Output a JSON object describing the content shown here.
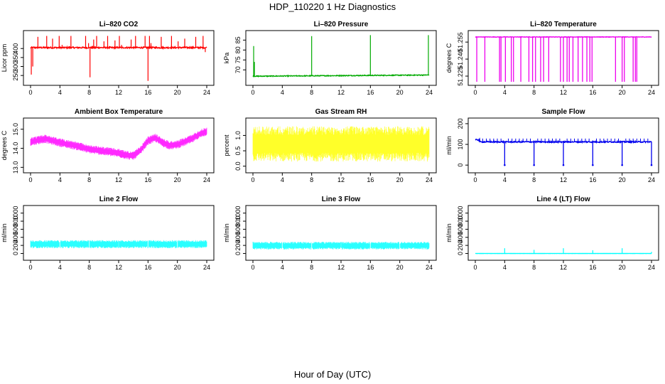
{
  "figure": {
    "title": "HDP_110220  1 Hz Diagnostics",
    "xlabel": "Hour of Day (UTC)"
  },
  "chart_data": [
    {
      "type": "line",
      "title": "Li–820 CO2",
      "ylabel": "Licor ppm",
      "color": "#ff0000",
      "xlim": [
        0,
        24
      ],
      "ylim": [
        215,
        480
      ],
      "xticks": [
        0,
        4,
        8,
        12,
        16,
        20,
        24
      ],
      "yticks": [
        250,
        300,
        350,
        400
      ],
      "baseline": {
        "center": 405,
        "noise": 4
      },
      "spikes": [
        [
          0.1,
          255
        ],
        [
          0.3,
          300
        ],
        [
          1.0,
          465
        ],
        [
          2.2,
          470
        ],
        [
          3.0,
          455
        ],
        [
          3.9,
          470
        ],
        [
          4.3,
          420
        ],
        [
          5.5,
          470
        ],
        [
          7.5,
          470
        ],
        [
          7.9,
          430
        ],
        [
          8.1,
          240
        ],
        [
          8.6,
          450
        ],
        [
          9.0,
          470
        ],
        [
          10.0,
          440
        ],
        [
          10.5,
          470
        ],
        [
          11.5,
          445
        ],
        [
          12.1,
          470
        ],
        [
          12.4,
          420
        ],
        [
          13.7,
          450
        ],
        [
          14.3,
          470
        ],
        [
          15.6,
          470
        ],
        [
          16.0,
          220
        ],
        [
          16.2,
          470
        ],
        [
          16.4,
          430
        ],
        [
          17.8,
          465
        ],
        [
          19.2,
          470
        ],
        [
          20.1,
          440
        ],
        [
          21.0,
          455
        ],
        [
          22.5,
          465
        ],
        [
          23.5,
          470
        ],
        [
          23.8,
          380
        ]
      ]
    },
    {
      "type": "line",
      "title": "Li–820 Pressure",
      "ylabel": "kPa",
      "color": "#00aa00",
      "xlim": [
        0,
        24
      ],
      "ylim": [
        64,
        88
      ],
      "xticks": [
        0,
        4,
        8,
        12,
        16,
        20,
        24
      ],
      "yticks": [
        70,
        75,
        80,
        85
      ],
      "baseline": {
        "start": 66.8,
        "end": 67.4,
        "noise": 0.2
      },
      "spikes": [
        [
          0.1,
          82
        ],
        [
          0.2,
          74
        ],
        [
          8.0,
          87
        ],
        [
          16.0,
          87.5
        ],
        [
          23.9,
          87.5
        ]
      ]
    },
    {
      "type": "line",
      "title": "Li–820 Temperature",
      "ylabel": "degrees C",
      "color": "#ee00ee",
      "xlim": [
        0,
        24
      ],
      "ylim": [
        51.22,
        51.262
      ],
      "xticks": [
        0,
        4,
        8,
        12,
        16,
        20,
        24
      ],
      "yticks": [
        51.225,
        51.24,
        51.255
      ],
      "yticklabels": [
        "51.225",
        "51.240",
        "51.255"
      ],
      "baseline": {
        "center": 51.2595,
        "noise": 0.0002
      },
      "drops": [
        0.2,
        1.3,
        3.3,
        3.5,
        4.1,
        4.9,
        5.2,
        6.2,
        7.3,
        7.8,
        8.2,
        8.9,
        9.3,
        10.0,
        11.6,
        12.0,
        12.5,
        12.8,
        13.3,
        14.0,
        14.6,
        15.2,
        15.6,
        15.9,
        19.1,
        20.0,
        20.3,
        21.5,
        21.8,
        22.0
      ]
    },
    {
      "type": "line",
      "title": "Ambient Box Temperature",
      "ylabel": "degrees C",
      "color": "#ff00ff",
      "xlim": [
        0,
        24
      ],
      "ylim": [
        12.9,
        15.4
      ],
      "xticks": [
        0,
        4,
        8,
        12,
        16,
        20,
        24
      ],
      "yticks": [
        13.0,
        14.0,
        15.0
      ],
      "yticklabels": [
        "13.0",
        "14.0",
        "15.0"
      ],
      "trend": {
        "hour": [
          0,
          2,
          4,
          6,
          8,
          10,
          12,
          13,
          14,
          15,
          16,
          17,
          18,
          19,
          20,
          22,
          23,
          24
        ],
        "center": [
          14.35,
          14.5,
          14.3,
          14.15,
          13.95,
          13.85,
          13.75,
          13.65,
          13.6,
          13.9,
          14.4,
          14.55,
          14.3,
          14.15,
          14.2,
          14.5,
          14.75,
          14.9
        ]
      },
      "band": 0.45
    },
    {
      "type": "line",
      "title": "Gas Stream RH",
      "ylabel": "percent",
      "color": "#ffff00",
      "xlim": [
        0,
        24
      ],
      "ylim": [
        -0.1,
        1.45
      ],
      "xticks": [
        0,
        4,
        8,
        12,
        16,
        20,
        24
      ],
      "yticks": [
        0.0,
        0.5,
        1.0
      ],
      "yticklabels": [
        "0.0",
        "0.5",
        "1.0"
      ],
      "band": {
        "low": 0.15,
        "high": 1.3
      }
    },
    {
      "type": "line",
      "title": "Sample Flow",
      "ylabel": "ml/min",
      "color": "#0000ee",
      "xlim": [
        0,
        24
      ],
      "ylim": [
        -20,
        210
      ],
      "xticks": [
        0,
        4,
        8,
        12,
        16,
        20,
        24
      ],
      "yticks": [
        0,
        100,
        200
      ],
      "baseline": {
        "center": 112,
        "noise": 3,
        "early": 122
      },
      "drops": [
        4.0,
        8.0,
        12.0,
        16.0,
        20.0,
        24.0
      ],
      "bumps": [
        0.5,
        1.0,
        1.5,
        2.0,
        2.5,
        3.0,
        3.5,
        4.5,
        5.0,
        5.5,
        6.0,
        6.5,
        7.0,
        7.5,
        8.5,
        9.0,
        9.5,
        10.0,
        10.5,
        11.0,
        11.5,
        12.5,
        13.0,
        13.5,
        14.0,
        14.5,
        15.0,
        15.5,
        16.5,
        17.0,
        17.5,
        18.0,
        18.5,
        19.0,
        19.5,
        20.5,
        21.0,
        21.5,
        22.0,
        22.5,
        23.0,
        23.5
      ]
    },
    {
      "type": "line",
      "title": "Line 2 Flow",
      "ylabel": "ml/min",
      "color": "#00ffff",
      "xlim": [
        0,
        24
      ],
      "ylim": [
        -80,
        1100
      ],
      "xticks": [
        0,
        4,
        8,
        12,
        16,
        20,
        24
      ],
      "yticks": [
        0,
        200,
        400,
        600,
        800,
        1000
      ],
      "band": {
        "low": 130,
        "high": 330
      },
      "gaps": [
        4.0,
        8.0,
        12.0,
        16.0,
        20.0
      ]
    },
    {
      "type": "line",
      "title": "Line 3 Flow",
      "ylabel": "ml/min",
      "color": "#00ffff",
      "xlim": [
        0,
        24
      ],
      "ylim": [
        -80,
        1100
      ],
      "xticks": [
        0,
        4,
        8,
        12,
        16,
        20,
        24
      ],
      "yticks": [
        0,
        200,
        400,
        600,
        800,
        1000
      ],
      "band": {
        "low": 100,
        "high": 290
      },
      "gaps": [
        4.0,
        8.0,
        12.0,
        16.0,
        20.0
      ]
    },
    {
      "type": "line",
      "title": "Line 4 (LT) Flow",
      "ylabel": "ml/min",
      "color": "#00ffff",
      "xlim": [
        0,
        24
      ],
      "ylim": [
        -80,
        1100
      ],
      "xticks": [
        0,
        4,
        8,
        12,
        16,
        20,
        24
      ],
      "yticks": [
        0,
        200,
        400,
        600,
        800,
        1000
      ],
      "baseline": {
        "center": 0,
        "noise": 1
      },
      "spikes": [
        [
          4.0,
          130
        ],
        [
          8.0,
          90
        ],
        [
          12.0,
          130
        ],
        [
          16.0,
          80
        ],
        [
          20.0,
          130
        ],
        [
          24.0,
          40
        ]
      ]
    }
  ]
}
